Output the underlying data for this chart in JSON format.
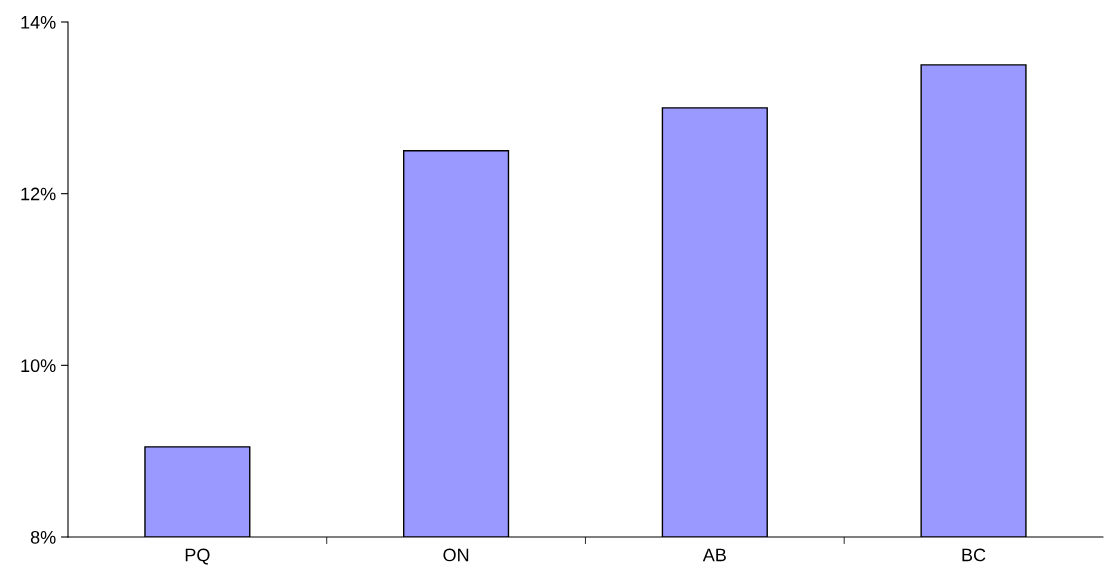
{
  "chart_data": {
    "type": "bar",
    "categories": [
      "PQ",
      "ON",
      "AB",
      "BC"
    ],
    "values": [
      9.05,
      12.5,
      13.0,
      13.5
    ],
    "color": "#9999ff",
    "ylim": [
      8,
      14
    ],
    "yticks": [
      {
        "value": 8,
        "label": "8%"
      },
      {
        "value": 10,
        "label": "10%"
      },
      {
        "value": 12,
        "label": "12%"
      },
      {
        "value": 14,
        "label": "14%"
      }
    ],
    "grid": false,
    "legend": false
  }
}
